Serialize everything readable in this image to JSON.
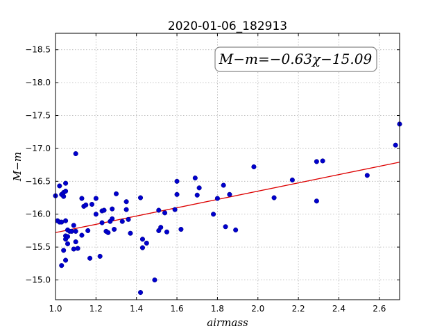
{
  "chart_data": {
    "type": "scatter",
    "title": "2020-01-06_182913",
    "xlabel": "airmass",
    "ylabel": "M−m",
    "xlim": [
      1.0,
      2.7
    ],
    "ylim": [
      -18.75,
      -14.7
    ],
    "y_inverted": true,
    "grid": true,
    "xticks": [
      "1.0",
      "1.2",
      "1.4",
      "1.6",
      "1.8",
      "2.0",
      "2.2",
      "2.4",
      "2.6"
    ],
    "yticks": [
      "−15.0",
      "−15.5",
      "−16.0",
      "−16.5",
      "−17.0",
      "−17.5",
      "−18.0",
      "−18.5"
    ],
    "annotation": "M−m=−0.63χ−15.09",
    "point_color": "#0000cc",
    "fit_color": "#dd0000",
    "fit": {
      "slope": -0.63,
      "intercept": -15.09
    },
    "points": [
      [
        1.0,
        -16.28
      ],
      [
        1.01,
        -15.9
      ],
      [
        1.02,
        -15.88
      ],
      [
        1.02,
        -16.43
      ],
      [
        1.03,
        -15.22
      ],
      [
        1.03,
        -15.88
      ],
      [
        1.03,
        -16.3
      ],
      [
        1.04,
        -15.45
      ],
      [
        1.04,
        -16.27
      ],
      [
        1.04,
        -16.33
      ],
      [
        1.05,
        -15.3
      ],
      [
        1.05,
        -15.62
      ],
      [
        1.05,
        -15.67
      ],
      [
        1.05,
        -15.9
      ],
      [
        1.05,
        -16.35
      ],
      [
        1.05,
        -16.47
      ],
      [
        1.06,
        -15.55
      ],
      [
        1.06,
        -15.66
      ],
      [
        1.06,
        -15.76
      ],
      [
        1.07,
        -15.74
      ],
      [
        1.08,
        -15.74
      ],
      [
        1.09,
        -15.47
      ],
      [
        1.09,
        -15.83
      ],
      [
        1.1,
        -15.58
      ],
      [
        1.1,
        -15.74
      ],
      [
        1.1,
        -16.92
      ],
      [
        1.11,
        -15.48
      ],
      [
        1.13,
        -15.68
      ],
      [
        1.13,
        -16.24
      ],
      [
        1.14,
        -16.12
      ],
      [
        1.15,
        -16.14
      ],
      [
        1.16,
        -15.75
      ],
      [
        1.17,
        -15.33
      ],
      [
        1.18,
        -16.15
      ],
      [
        1.2,
        -16.0
      ],
      [
        1.2,
        -16.24
      ],
      [
        1.22,
        -15.36
      ],
      [
        1.23,
        -15.87
      ],
      [
        1.23,
        -16.05
      ],
      [
        1.24,
        -16.06
      ],
      [
        1.25,
        -15.74
      ],
      [
        1.26,
        -15.72
      ],
      [
        1.27,
        -15.89
      ],
      [
        1.28,
        -15.93
      ],
      [
        1.28,
        -16.08
      ],
      [
        1.29,
        -15.77
      ],
      [
        1.3,
        -16.31
      ],
      [
        1.33,
        -15.89
      ],
      [
        1.35,
        -16.07
      ],
      [
        1.35,
        -16.19
      ],
      [
        1.36,
        -15.92
      ],
      [
        1.37,
        -15.71
      ],
      [
        1.42,
        -14.81
      ],
      [
        1.42,
        -16.25
      ],
      [
        1.43,
        -15.49
      ],
      [
        1.43,
        -15.62
      ],
      [
        1.45,
        -15.56
      ],
      [
        1.49,
        -15.0
      ],
      [
        1.51,
        -15.75
      ],
      [
        1.51,
        -16.06
      ],
      [
        1.52,
        -15.8
      ],
      [
        1.54,
        -16.02
      ],
      [
        1.55,
        -15.73
      ],
      [
        1.59,
        -16.07
      ],
      [
        1.6,
        -16.3
      ],
      [
        1.6,
        -16.5
      ],
      [
        1.62,
        -15.77
      ],
      [
        1.69,
        -16.55
      ],
      [
        1.7,
        -16.29
      ],
      [
        1.71,
        -16.4
      ],
      [
        1.78,
        -16.0
      ],
      [
        1.8,
        -16.24
      ],
      [
        1.83,
        -16.44
      ],
      [
        1.84,
        -15.81
      ],
      [
        1.86,
        -16.3
      ],
      [
        1.89,
        -15.76
      ],
      [
        1.98,
        -16.72
      ],
      [
        2.08,
        -16.25
      ],
      [
        2.17,
        -16.52
      ],
      [
        2.29,
        -16.2
      ],
      [
        2.29,
        -16.8
      ],
      [
        2.32,
        -16.81
      ],
      [
        2.54,
        -16.59
      ],
      [
        2.68,
        -17.05
      ],
      [
        2.7,
        -17.37
      ]
    ]
  }
}
